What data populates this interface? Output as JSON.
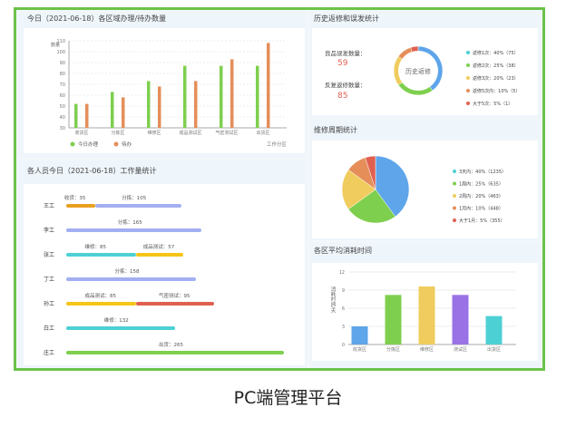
{
  "caption": "PC端管理平台",
  "colors": {
    "frame": "#6cc24a",
    "green": "#7ecf4e",
    "orange": "#e58e5a",
    "blue": "#5ea5ea",
    "yellow": "#f0cc5e",
    "red": "#e0604f",
    "cyan": "#4dd0d4",
    "purple": "#9a72e6",
    "lavender": "#a3aff0",
    "amber": "#e9a020",
    "gold": "#f5c518"
  },
  "panels": {
    "region_todo": {
      "title": "今日（2021-06-18）各区域办理/待办数量"
    },
    "workload": {
      "title": "各人员今日（2021-06-18）工作量统计"
    },
    "rework": {
      "title": "历史返修和误发统计",
      "misship_label": "良品误发数量：",
      "misship_value": "59",
      "rework_label": "反复返修数量：",
      "rework_value": "85",
      "donut_center": "历史返修"
    },
    "cycle": {
      "title": "维修周期统计"
    },
    "avgtime": {
      "title": "各区平均消耗时间"
    }
  },
  "chart_data": [
    {
      "type": "bar",
      "title": "今日（2021-06-18）各区域办理/待办数量",
      "ylabel": "数量",
      "xlabel": "工作分区",
      "ylim": [
        30,
        110
      ],
      "yticks": [
        30,
        40,
        50,
        60,
        70,
        80,
        90,
        100,
        110
      ],
      "grid": true,
      "legend": "bottom-left",
      "categories": [
        "收货区",
        "分拣区",
        "维修区",
        "成品测试区",
        "气密测试区",
        "出货区"
      ],
      "series": [
        {
          "name": "今日办理",
          "color": "#7ecf4e",
          "values": [
            52,
            63,
            73,
            87,
            87,
            87
          ]
        },
        {
          "name": "待办",
          "color": "#e58e5a",
          "values": [
            52,
            58,
            68,
            73,
            93,
            108
          ]
        }
      ]
    },
    {
      "type": "bar",
      "orientation": "horizontal-stacked",
      "title": "各人员今日（2021-06-18）工作量统计",
      "rows": [
        {
          "name": "王工",
          "segments": [
            {
              "label": "收货：35",
              "value": 35,
              "color": "#e9a020"
            },
            {
              "label": "分拣：105",
              "value": 105,
              "color": "#a3aff0"
            }
          ]
        },
        {
          "name": "李工",
          "segments": [
            {
              "label": "分拣：165",
              "value": 165,
              "color": "#a3aff0"
            }
          ]
        },
        {
          "name": "张工",
          "segments": [
            {
              "label": "维修：85",
              "value": 85,
              "color": "#4dd0d4"
            },
            {
              "label": "成品测试：57",
              "value": 57,
              "color": "#f5c518"
            }
          ]
        },
        {
          "name": "丁工",
          "segments": [
            {
              "label": "分拣：158",
              "value": 158,
              "color": "#a3aff0"
            }
          ]
        },
        {
          "name": "孙工",
          "segments": [
            {
              "label": "成品测试：85",
              "value": 85,
              "color": "#f5c518"
            },
            {
              "label": "气密测试：95",
              "value": 95,
              "color": "#e0604f"
            }
          ]
        },
        {
          "name": "白工",
          "segments": [
            {
              "label": "维修：132",
              "value": 132,
              "color": "#4dd0d4"
            }
          ]
        },
        {
          "name": "庄工",
          "segments": [
            {
              "label": "出货：265",
              "value": 265,
              "color": "#7ecf4e"
            }
          ]
        }
      ]
    },
    {
      "type": "pie",
      "variant": "donut",
      "title": "历史返修和误发统计",
      "legend": "right",
      "slices": [
        {
          "label": "返修1次：40%（75）",
          "value": 40,
          "color": "#5ea5ea",
          "dot": "#4dd0d4"
        },
        {
          "label": "返修2次：25%（38）",
          "value": 25,
          "color": "#7ecf4e",
          "dot": "#7ecf4e"
        },
        {
          "label": "返修3次：20%（23）",
          "value": 20,
          "color": "#f0cc5e",
          "dot": "#f0cc5e"
        },
        {
          "label": "返修5次内：10%（5）",
          "value": 10,
          "color": "#e58e5a",
          "dot": "#e58e5a"
        },
        {
          "label": "大于5次：5%（1）",
          "value": 5,
          "color": "#e0604f",
          "dot": "#e0604f"
        }
      ]
    },
    {
      "type": "pie",
      "title": "维修周期统计",
      "legend": "right",
      "slices": [
        {
          "label": "3天内：40%（1235）",
          "value": 40,
          "color": "#5ea5ea",
          "dot": "#4dd0d4"
        },
        {
          "label": "1周内：25%（635）",
          "value": 25,
          "color": "#7ecf4e",
          "dot": "#7ecf4e"
        },
        {
          "label": "2周内：20%（463）",
          "value": 20,
          "color": "#f0cc5e",
          "dot": "#f0cc5e"
        },
        {
          "label": "1月内：10%（448）",
          "value": 10,
          "color": "#e58e5a",
          "dot": "#e58e5a"
        },
        {
          "label": "大于1月：5%（355）",
          "value": 5,
          "color": "#e0604f",
          "dot": "#e0604f"
        }
      ]
    },
    {
      "type": "bar",
      "title": "各区平均消耗时间",
      "ylabel": "消耗时间/天",
      "ylim": [
        0,
        12
      ],
      "yticks": [
        0,
        3,
        6,
        9,
        12
      ],
      "grid": true,
      "categories": [
        "收货区",
        "分拣区",
        "维修区",
        "测试区",
        "出货区"
      ],
      "values": [
        3,
        8.2,
        9.6,
        8.2,
        4.7
      ],
      "colors": [
        "#5ea5ea",
        "#7ecf4e",
        "#f0cc5e",
        "#9a72e6",
        "#4dd0d4"
      ]
    }
  ]
}
